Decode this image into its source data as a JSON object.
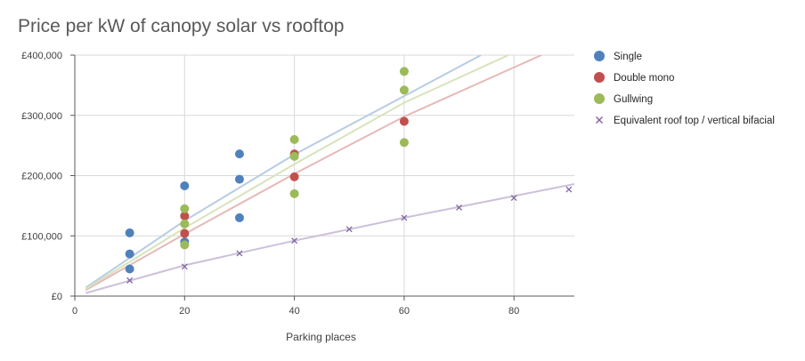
{
  "chart_data": {
    "type": "scatter",
    "title": "Price per kW of canopy solar vs rooftop",
    "xlabel": "Parking places",
    "ylabel": "",
    "xlim": [
      0,
      91
    ],
    "ylim": [
      0,
      400000
    ],
    "x_ticks": [
      0,
      20,
      40,
      60,
      80
    ],
    "x_tick_labels": [
      "0",
      "20",
      "40",
      "60",
      "80"
    ],
    "y_ticks": [
      0,
      100000,
      200000,
      300000,
      400000
    ],
    "y_tick_labels": [
      "£0",
      "£100,000",
      "£200,000",
      "£300,000",
      "£400,000"
    ],
    "grid": true,
    "legend_position": "right",
    "series": [
      {
        "name": "Single",
        "color": "#4f81bd",
        "marker": "circle",
        "trend_color": "#b8cce4",
        "trendline": [
          [
            2,
            14000
          ],
          [
            20,
            125000
          ],
          [
            40,
            235000
          ],
          [
            74,
            400000
          ]
        ],
        "points": [
          [
            10,
            105000
          ],
          [
            10,
            70000
          ],
          [
            10,
            45000
          ],
          [
            20,
            183000
          ],
          [
            20,
            90000
          ],
          [
            30,
            236000
          ],
          [
            30,
            194000
          ],
          [
            30,
            130000
          ]
        ]
      },
      {
        "name": "Double mono",
        "color": "#c0504d",
        "marker": "circle",
        "trend_color": "#e6b9b8",
        "trendline": [
          [
            2,
            10000
          ],
          [
            20,
            103000
          ],
          [
            40,
            203000
          ],
          [
            60,
            298000
          ],
          [
            85,
            400000
          ]
        ],
        "points": [
          [
            20,
            133000
          ],
          [
            20,
            104000
          ],
          [
            40,
            236000
          ],
          [
            40,
            198000
          ],
          [
            60,
            290000
          ]
        ]
      },
      {
        "name": "Gullwing",
        "color": "#9bbb59",
        "marker": "circle",
        "trend_color": "#d7e4bd",
        "trendline": [
          [
            2,
            12000
          ],
          [
            20,
            113000
          ],
          [
            40,
            219000
          ],
          [
            60,
            321000
          ],
          [
            79,
            400000
          ]
        ],
        "points": [
          [
            20,
            145000
          ],
          [
            20,
            120000
          ],
          [
            20,
            85000
          ],
          [
            40,
            260000
          ],
          [
            40,
            232000
          ],
          [
            40,
            170000
          ],
          [
            60,
            373000
          ],
          [
            60,
            342000
          ],
          [
            60,
            255000
          ]
        ]
      },
      {
        "name": "Equivalent roof top / vertical bifacial",
        "color": "#8064a2",
        "marker": "x",
        "trend_color": "#ccc1da",
        "trendline": [
          [
            2,
            5000
          ],
          [
            20,
            51000
          ],
          [
            40,
            92000
          ],
          [
            60,
            130000
          ],
          [
            91,
            186000
          ]
        ],
        "points": [
          [
            10,
            26000
          ],
          [
            20,
            49000
          ],
          [
            30,
            71000
          ],
          [
            40,
            92000
          ],
          [
            50,
            111000
          ],
          [
            60,
            130000
          ],
          [
            70,
            147000
          ],
          [
            80,
            163000
          ],
          [
            90,
            177000
          ]
        ]
      }
    ]
  }
}
